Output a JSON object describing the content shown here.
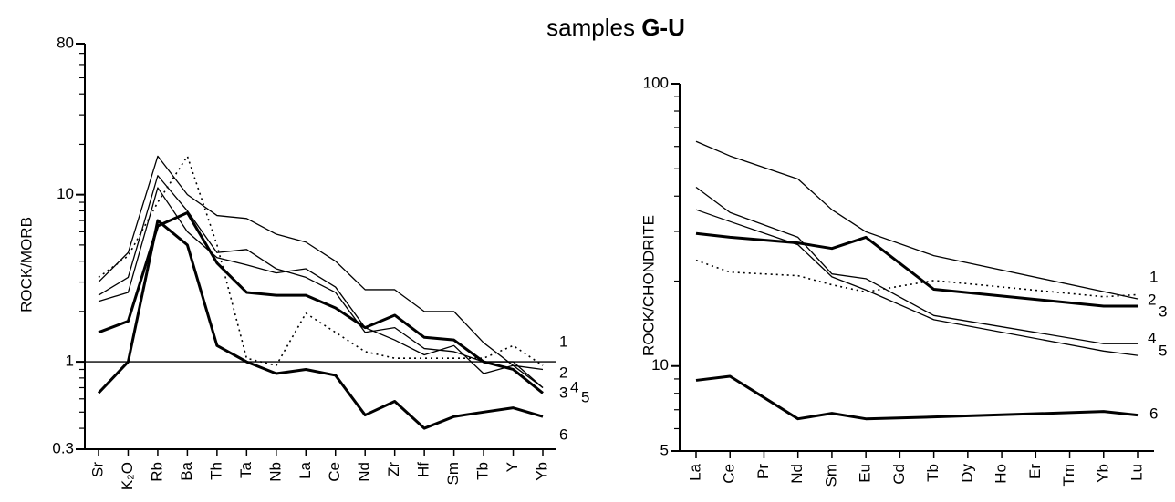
{
  "title": [
    "samples",
    "G-U"
  ],
  "chart_data": [
    {
      "type": "line",
      "ylabel": "ROCK/MORB",
      "yscale": "log",
      "ylim": [
        0.3,
        80
      ],
      "yticks": [
        0.3,
        1,
        10,
        80
      ],
      "minor_yticks": [
        0.4,
        0.5,
        0.6,
        0.7,
        0.8,
        0.9,
        2,
        3,
        4,
        5,
        6,
        7,
        8,
        9,
        20,
        30,
        40,
        50,
        60,
        70
      ],
      "hline": 1,
      "categories": [
        "Sr",
        "K₂O",
        "Rb",
        "Ba",
        "Th",
        "Ta",
        "Nb",
        "La",
        "Ce",
        "Nd",
        "Zr",
        "Hf",
        "Sm",
        "Tb",
        "Y",
        "Yb"
      ],
      "series": [
        {
          "name": "1",
          "color": "#000000",
          "style": "dotted",
          "values": [
            3.2,
            4.3,
            9,
            17,
            5,
            1.05,
            0.95,
            1.95,
            1.5,
            1.15,
            1.05,
            1.05,
            1.05,
            1.05,
            1.25,
            0.95
          ]
        },
        {
          "name": "2",
          "color": "#000000",
          "style": "thin",
          "values": [
            3.0,
            4.5,
            17,
            10,
            7.5,
            7.2,
            5.8,
            5.2,
            4.0,
            2.7,
            2.7,
            2.0,
            2.0,
            1.3,
            0.95,
            0.9
          ]
        },
        {
          "name": "3",
          "color": "#000000",
          "style": "thick",
          "values": [
            1.5,
            1.75,
            6.5,
            7.8,
            3.9,
            2.6,
            2.5,
            2.5,
            2.1,
            1.6,
            1.9,
            1.4,
            1.35,
            1.0,
            0.9,
            0.65
          ]
        },
        {
          "name": "4",
          "color": "#000000",
          "style": "thin",
          "values": [
            2.5,
            3.2,
            13,
            8,
            4.5,
            4.7,
            3.6,
            3.2,
            2.6,
            1.5,
            1.6,
            1.2,
            1.15,
            1.0,
            1.0,
            0.7
          ]
        },
        {
          "name": "5",
          "color": "#000000",
          "style": "thin",
          "values": [
            2.3,
            2.6,
            11,
            6,
            4.2,
            3.8,
            3.4,
            3.6,
            2.8,
            1.6,
            1.35,
            1.1,
            1.25,
            0.85,
            0.95,
            0.7
          ]
        },
        {
          "name": "6",
          "color": "#000000",
          "style": "thick",
          "values": [
            0.65,
            1.0,
            7.0,
            5.0,
            1.25,
            1.0,
            0.85,
            0.9,
            0.83,
            0.48,
            0.58,
            0.4,
            0.47,
            0.5,
            0.53,
            0.47
          ]
        }
      ]
    },
    {
      "type": "line",
      "ylabel": "ROCK/CHONDRITE",
      "yscale": "log",
      "connect_gaps": true,
      "ylim": [
        5,
        100
      ],
      "yticks": [
        5,
        10,
        100
      ],
      "minor_yticks": [
        6,
        7,
        8,
        9,
        20,
        30,
        40,
        50,
        60,
        70,
        80,
        90
      ],
      "categories": [
        "La",
        "Ce",
        "Pr",
        "Nd",
        "Sm",
        "Eu",
        "Gd",
        "Tb",
        "Dy",
        "Ho",
        "Er",
        "Tm",
        "Yb",
        "Lu"
      ],
      "series": [
        {
          "name": "1",
          "color": "#000000",
          "style": "thin",
          "values": [
            62.5,
            55.5,
            null,
            46,
            35.8,
            29.9,
            null,
            24.6,
            null,
            null,
            null,
            null,
            null,
            17.3
          ]
        },
        {
          "name": "2",
          "color": "#000000",
          "style": "dotted",
          "values": [
            23.7,
            21.5,
            null,
            20.9,
            19.4,
            18.3,
            null,
            20.1,
            null,
            null,
            null,
            null,
            17.6,
            17.9
          ]
        },
        {
          "name": "3",
          "color": "#000000",
          "style": "thick",
          "values": [
            29.5,
            28.6,
            null,
            27.3,
            26.1,
            28.6,
            null,
            18.7,
            null,
            null,
            null,
            null,
            16.3,
            16.3
          ]
        },
        {
          "name": "4",
          "color": "#000000",
          "style": "thin",
          "values": [
            43,
            35,
            null,
            28.6,
            21.2,
            20.4,
            null,
            15.1,
            null,
            null,
            null,
            null,
            12.0,
            12.0
          ]
        },
        {
          "name": "5",
          "color": "#000000",
          "style": "thin",
          "values": [
            35.8,
            32.5,
            null,
            26.9,
            20.7,
            18.6,
            null,
            14.6,
            null,
            null,
            null,
            null,
            11.3,
            10.9
          ]
        },
        {
          "name": "6",
          "color": "#000000",
          "style": "thick",
          "values": [
            8.9,
            9.2,
            null,
            6.5,
            6.8,
            6.5,
            null,
            6.6,
            null,
            null,
            null,
            null,
            6.9,
            6.7
          ]
        }
      ]
    }
  ]
}
